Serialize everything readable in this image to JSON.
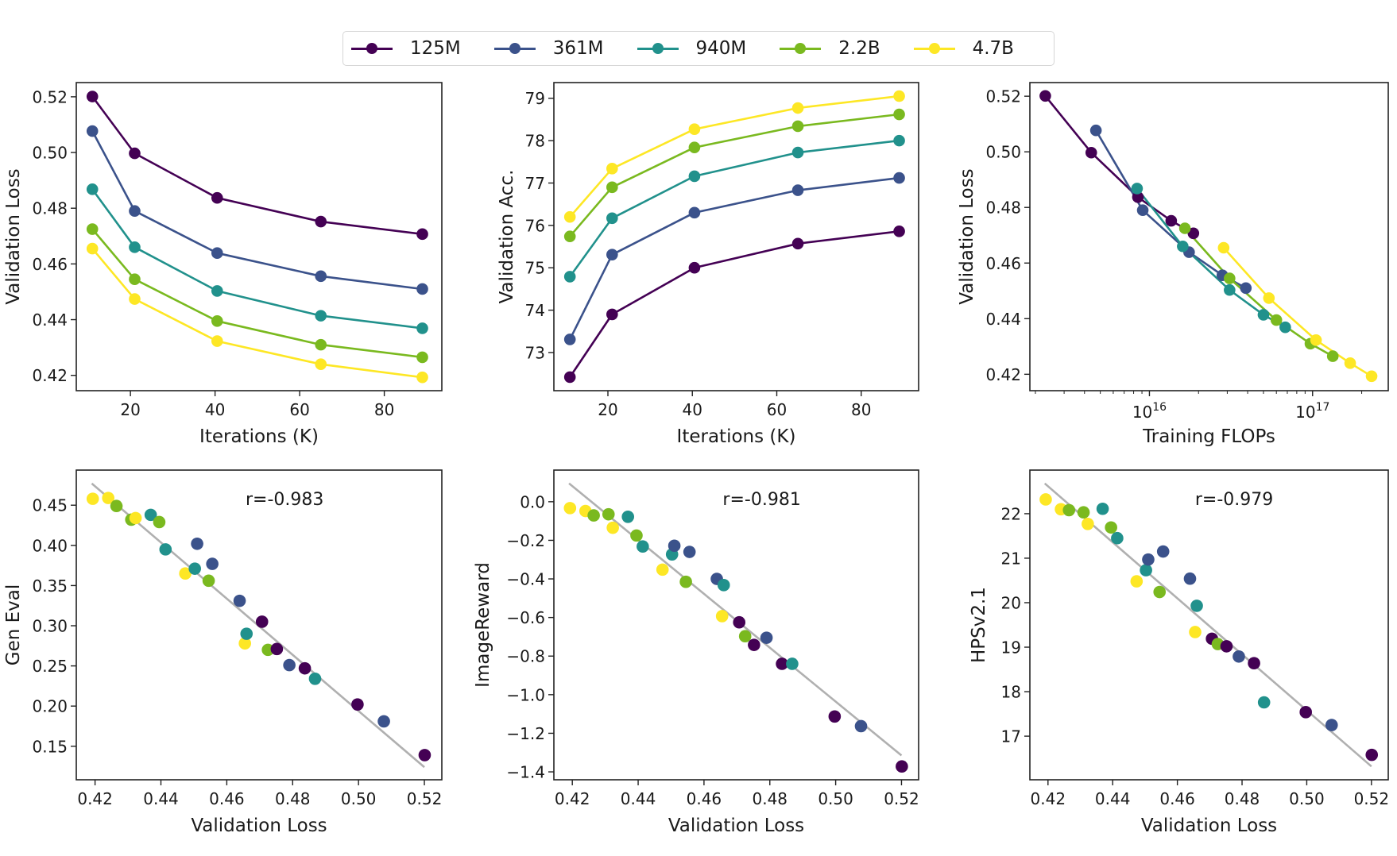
{
  "legend": {
    "items": [
      {
        "label": "125M",
        "color": "#440154"
      },
      {
        "label": "361M",
        "color": "#3b528b"
      },
      {
        "label": "940M",
        "color": "#21918c"
      },
      {
        "label": "2.2B",
        "color": "#7ab91f"
      },
      {
        "label": "4.7B",
        "color": "#fde725"
      }
    ]
  },
  "chart_data": [
    {
      "id": "loss-vs-iter",
      "type": "line",
      "title": "",
      "xlabel": "Iterations (K)",
      "ylabel": "Validation Loss",
      "xscale": "linear",
      "xlim": [
        7.2,
        93.6
      ],
      "ylim": [
        0.4145,
        0.5251
      ],
      "xticks": [
        20,
        40,
        60,
        80
      ],
      "xtick_labels": [
        "20",
        "40",
        "60",
        "80"
      ],
      "yticks": [
        0.42,
        0.44,
        0.46,
        0.48,
        0.5,
        0.52
      ],
      "ytick_labels": [
        "0.42",
        "0.44",
        "0.46",
        "0.48",
        "0.50",
        "0.52"
      ],
      "grid": false,
      "series": [
        {
          "name": "125M",
          "x": [
            11,
            21,
            40.5,
            65,
            89
          ],
          "y": [
            0.5201,
            0.4997,
            0.4837,
            0.4752,
            0.4707
          ]
        },
        {
          "name": "361M",
          "x": [
            11,
            21,
            40.5,
            65,
            89
          ],
          "y": [
            0.5077,
            0.479,
            0.4639,
            0.4556,
            0.451
          ]
        },
        {
          "name": "940M",
          "x": [
            11,
            21,
            40.5,
            65,
            89
          ],
          "y": [
            0.4868,
            0.466,
            0.4503,
            0.4414,
            0.4369
          ]
        },
        {
          "name": "2.2B",
          "x": [
            11,
            21,
            40.5,
            65,
            89
          ],
          "y": [
            0.4725,
            0.4545,
            0.4395,
            0.431,
            0.4265
          ]
        },
        {
          "name": "4.7B",
          "x": [
            11,
            21,
            40.5,
            65,
            89
          ],
          "y": [
            0.4655,
            0.4474,
            0.4323,
            0.424,
            0.4193
          ]
        }
      ]
    },
    {
      "id": "acc-vs-iter",
      "type": "line",
      "title": "",
      "xlabel": "Iterations (K)",
      "ylabel": "Validation Acc.",
      "xscale": "linear",
      "xlim": [
        7.2,
        93.6
      ],
      "ylim": [
        72.1,
        79.37
      ],
      "xticks": [
        20,
        40,
        60,
        80
      ],
      "xtick_labels": [
        "20",
        "40",
        "60",
        "80"
      ],
      "yticks": [
        73,
        74,
        75,
        76,
        77,
        78,
        79
      ],
      "ytick_labels": [
        "73",
        "74",
        "75",
        "76",
        "77",
        "78",
        "79"
      ],
      "grid": false,
      "series": [
        {
          "name": "125M",
          "x": [
            11,
            21,
            40.5,
            65,
            89
          ],
          "y": [
            72.42,
            73.9,
            75.0,
            75.57,
            75.86
          ]
        },
        {
          "name": "361M",
          "x": [
            11,
            21,
            40.5,
            65,
            89
          ],
          "y": [
            73.31,
            75.31,
            76.3,
            76.83,
            77.12
          ]
        },
        {
          "name": "940M",
          "x": [
            11,
            21,
            40.5,
            65,
            89
          ],
          "y": [
            74.79,
            76.17,
            77.16,
            77.72,
            78.0
          ]
        },
        {
          "name": "2.2B",
          "x": [
            11,
            21,
            40.5,
            65,
            89
          ],
          "y": [
            75.74,
            76.9,
            77.84,
            78.34,
            78.62
          ]
        },
        {
          "name": "4.7B",
          "x": [
            11,
            21,
            40.5,
            65,
            89
          ],
          "y": [
            76.2,
            77.34,
            78.27,
            78.77,
            79.05
          ]
        }
      ]
    },
    {
      "id": "loss-vs-flops",
      "type": "line",
      "title": "",
      "xlabel": "Training FLOPs",
      "ylabel": "Validation Loss",
      "xscale": "log",
      "xlim": [
        1850000000000000.0,
        2.91e+17
      ],
      "ylim": [
        0.4141,
        0.5249
      ],
      "xticks_major": [
        1e+16,
        1e+17
      ],
      "xtick_labels": [
        {
          "base": "10",
          "exp": "16"
        },
        {
          "base": "10",
          "exp": "17"
        }
      ],
      "yticks": [
        0.42,
        0.44,
        0.46,
        0.48,
        0.5,
        0.52
      ],
      "ytick_labels": [
        "0.42",
        "0.44",
        "0.46",
        "0.48",
        "0.50",
        "0.52"
      ],
      "grid": false,
      "series": [
        {
          "name": "125M",
          "x": [
            2300000000000000.0,
            4400000000000000.0,
            8500000000000000.0,
            1.36e+16,
            1.86e+16
          ],
          "y": [
            0.5201,
            0.4997,
            0.4837,
            0.4752,
            0.4707
          ]
        },
        {
          "name": "361M",
          "x": [
            4700000000000000.0,
            9100000000000000.0,
            1.75e+16,
            2.8e+16,
            3.9e+16
          ],
          "y": [
            0.5077,
            0.479,
            0.4639,
            0.4556,
            0.451
          ]
        },
        {
          "name": "940M",
          "x": [
            8400000000000000.0,
            1.6e+16,
            3.1e+16,
            5e+16,
            6.8e+16
          ],
          "y": [
            0.4868,
            0.466,
            0.4503,
            0.4414,
            0.4369
          ]
        },
        {
          "name": "2.2B",
          "x": [
            1.65e+16,
            3.1e+16,
            6e+16,
            9.7e+16,
            1.33e+17
          ],
          "y": [
            0.4725,
            0.4545,
            0.4395,
            0.431,
            0.4265
          ]
        },
        {
          "name": "4.7B",
          "x": [
            2.85e+16,
            5.4e+16,
            1.05e+17,
            1.7e+17,
            2.3e+17
          ],
          "y": [
            0.4655,
            0.4474,
            0.4323,
            0.424,
            0.4193
          ]
        }
      ]
    },
    {
      "id": "geneval-vs-loss",
      "type": "scatter",
      "title": "",
      "xlabel": "Validation Loss",
      "ylabel": "Gen Eval",
      "annotation": "r=-0.983",
      "xscale": "linear",
      "xlim": [
        0.4143,
        0.5253
      ],
      "ylim": [
        0.1083,
        0.4937
      ],
      "xticks": [
        0.42,
        0.44,
        0.46,
        0.48,
        0.5,
        0.52
      ],
      "xtick_labels": [
        "0.42",
        "0.44",
        "0.46",
        "0.48",
        "0.50",
        "0.52"
      ],
      "yticks": [
        0.15,
        0.2,
        0.25,
        0.3,
        0.35,
        0.4,
        0.45
      ],
      "ytick_labels": [
        "0.15",
        "0.20",
        "0.25",
        "0.30",
        "0.35",
        "0.40",
        "0.45"
      ],
      "grid": false,
      "fit_line": {
        "x": [
          0.419,
          0.52
        ],
        "y": [
          0.477,
          0.124
        ],
        "color": "#b0b0b0"
      },
      "series": [
        {
          "name": "125M",
          "x": [
            0.5201,
            0.4997,
            0.4837,
            0.4752,
            0.4707
          ],
          "y": [
            0.139,
            0.202,
            0.247,
            0.271,
            0.305
          ]
        },
        {
          "name": "361M",
          "x": [
            0.5077,
            0.479,
            0.4639,
            0.4556,
            0.451
          ],
          "y": [
            0.181,
            0.251,
            0.331,
            0.377,
            0.402
          ]
        },
        {
          "name": "940M",
          "x": [
            0.4868,
            0.466,
            0.4503,
            0.4414,
            0.4369
          ],
          "y": [
            0.234,
            0.29,
            0.371,
            0.395,
            0.438
          ]
        },
        {
          "name": "2.2B",
          "x": [
            0.4725,
            0.4545,
            0.4395,
            0.431,
            0.4265
          ],
          "y": [
            0.27,
            0.356,
            0.429,
            0.432,
            0.449
          ]
        },
        {
          "name": "4.7B",
          "x": [
            0.4655,
            0.4474,
            0.4323,
            0.424,
            0.4193
          ],
          "y": [
            0.278,
            0.365,
            0.434,
            0.459,
            0.458
          ]
        }
      ]
    },
    {
      "id": "imagereward-vs-loss",
      "type": "scatter",
      "title": "",
      "xlabel": "Validation Loss",
      "ylabel": "ImageReward",
      "annotation": "r=-0.981",
      "xscale": "linear",
      "xlim": [
        0.4144,
        0.5252
      ],
      "ylim": [
        -1.441,
        0.164
      ],
      "xticks": [
        0.42,
        0.44,
        0.46,
        0.48,
        0.5,
        0.52
      ],
      "xtick_labels": [
        "0.42",
        "0.44",
        "0.46",
        "0.48",
        "0.50",
        "0.52"
      ],
      "yticks": [
        -1.4,
        -1.2,
        -1.0,
        -0.8,
        -0.6,
        -0.4,
        -0.2,
        0.0
      ],
      "ytick_labels": [
        "−1.4",
        "−1.2",
        "−1.0",
        "−0.8",
        "−0.6",
        "−0.4",
        "−0.2",
        "0.0"
      ],
      "grid": false,
      "fit_line": {
        "x": [
          0.419,
          0.52
        ],
        "y": [
          0.095,
          -1.315
        ],
        "color": "#b0b0b0"
      },
      "series": [
        {
          "name": "125M",
          "x": [
            0.5201,
            0.4997,
            0.4837,
            0.4752,
            0.4707
          ],
          "y": [
            -1.372,
            -1.113,
            -0.84,
            -0.742,
            -0.625
          ]
        },
        {
          "name": "361M",
          "x": [
            0.5077,
            0.479,
            0.4639,
            0.4556,
            0.451
          ],
          "y": [
            -1.163,
            -0.705,
            -0.4,
            -0.26,
            -0.228
          ]
        },
        {
          "name": "940M",
          "x": [
            0.4868,
            0.466,
            0.4503,
            0.4414,
            0.4369
          ],
          "y": [
            -0.84,
            -0.432,
            -0.273,
            -0.232,
            -0.078
          ]
        },
        {
          "name": "2.2B",
          "x": [
            0.4725,
            0.4545,
            0.4395,
            0.431,
            0.4265
          ],
          "y": [
            -0.697,
            -0.415,
            -0.175,
            -0.065,
            -0.071
          ]
        },
        {
          "name": "4.7B",
          "x": [
            0.4655,
            0.4474,
            0.4323,
            0.424,
            0.4193
          ],
          "y": [
            -0.593,
            -0.352,
            -0.135,
            -0.048,
            -0.033
          ]
        }
      ]
    },
    {
      "id": "hps-vs-loss",
      "type": "scatter",
      "title": "",
      "xlabel": "Validation Loss",
      "ylabel": "HPSv2.1",
      "annotation": "r=-0.979",
      "xscale": "linear",
      "xlim": [
        0.4144,
        0.5252
      ],
      "ylim": [
        16.02,
        22.98
      ],
      "xticks": [
        0.42,
        0.44,
        0.46,
        0.48,
        0.5,
        0.52
      ],
      "xtick_labels": [
        "0.42",
        "0.44",
        "0.46",
        "0.48",
        "0.50",
        "0.52"
      ],
      "yticks": [
        17,
        18,
        19,
        20,
        21,
        22
      ],
      "ytick_labels": [
        "17",
        "18",
        "19",
        "20",
        "21",
        "22"
      ],
      "grid": false,
      "fit_line": {
        "x": [
          0.419,
          0.52
        ],
        "y": [
          22.68,
          16.32
        ],
        "color": "#b0b0b0"
      },
      "series": [
        {
          "name": "125M",
          "x": [
            0.5201,
            0.4997,
            0.4837,
            0.4752,
            0.4707
          ],
          "y": [
            16.58,
            17.54,
            18.64,
            19.02,
            19.19
          ]
        },
        {
          "name": "361M",
          "x": [
            0.5077,
            0.479,
            0.4639,
            0.4556,
            0.451
          ],
          "y": [
            17.25,
            18.79,
            20.54,
            21.15,
            20.97
          ]
        },
        {
          "name": "940M",
          "x": [
            0.4868,
            0.466,
            0.4503,
            0.4414,
            0.4369
          ],
          "y": [
            17.76,
            19.93,
            20.73,
            21.45,
            22.11
          ]
        },
        {
          "name": "2.2B",
          "x": [
            0.4725,
            0.4545,
            0.4395,
            0.431,
            0.4265
          ],
          "y": [
            19.07,
            20.24,
            21.69,
            22.03,
            22.08
          ]
        },
        {
          "name": "4.7B",
          "x": [
            0.4655,
            0.4474,
            0.4323,
            0.424,
            0.4193
          ],
          "y": [
            19.34,
            20.48,
            21.77,
            22.1,
            22.32
          ]
        }
      ]
    }
  ]
}
